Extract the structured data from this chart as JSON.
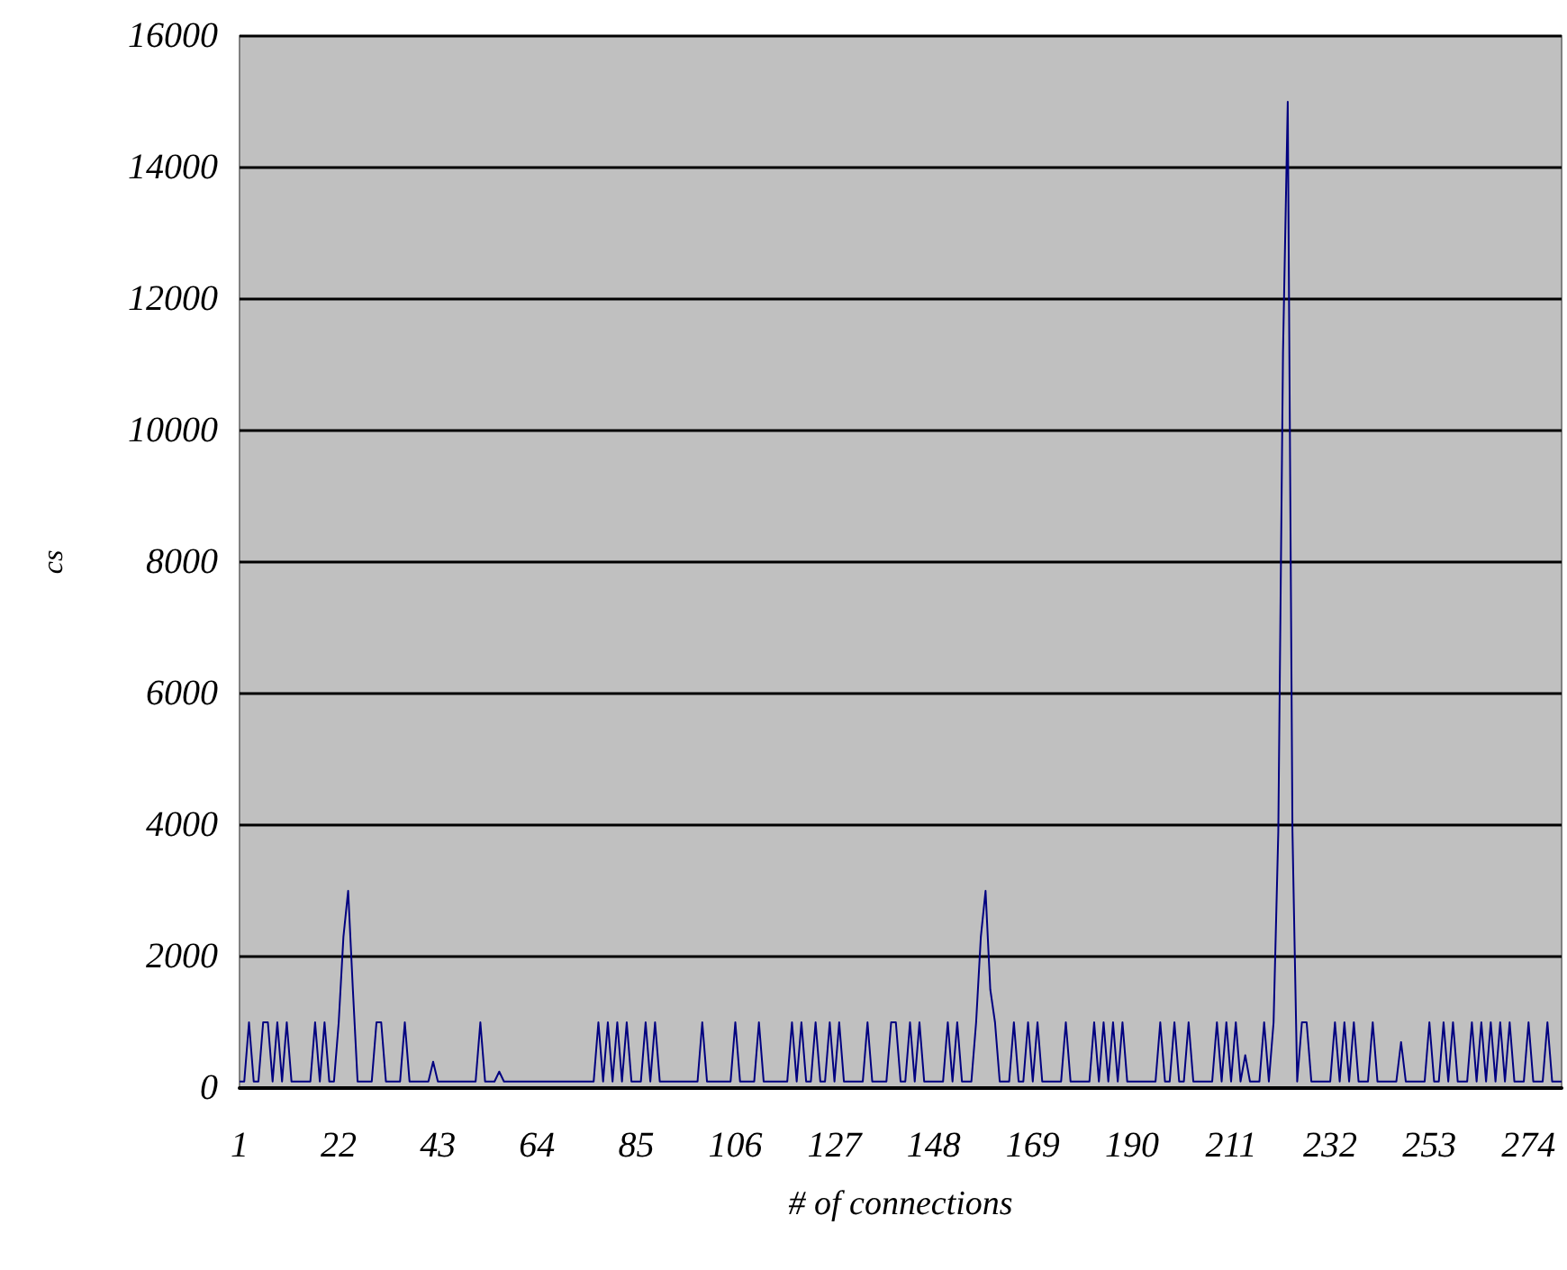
{
  "chart_data": {
    "type": "line",
    "xlabel": "# of connections",
    "ylabel": "cs",
    "categories": [
      "1",
      null,
      null,
      null,
      null,
      null,
      null,
      null,
      null,
      null,
      null,
      null,
      null,
      null,
      null,
      null,
      null,
      null,
      null,
      null,
      null,
      "22",
      null,
      null,
      null,
      null,
      null,
      null,
      null,
      null,
      null,
      null,
      null,
      null,
      null,
      null,
      null,
      null,
      null,
      null,
      null,
      null,
      "43",
      null,
      null,
      null,
      null,
      null,
      null,
      null,
      null,
      null,
      null,
      null,
      null,
      null,
      null,
      null,
      null,
      null,
      null,
      null,
      null,
      "64",
      null,
      null,
      null,
      null,
      null,
      null,
      null,
      null,
      null,
      null,
      null,
      null,
      null,
      null,
      null,
      null,
      null,
      null,
      null,
      null,
      "85",
      null,
      null,
      null,
      null,
      null,
      null,
      null,
      null,
      null,
      null,
      null,
      null,
      null,
      null,
      null,
      null,
      null,
      null,
      null,
      null,
      "106",
      null,
      null,
      null,
      null,
      null,
      null,
      null,
      null,
      null,
      null,
      null,
      null,
      null,
      null,
      null,
      null,
      null,
      null,
      null,
      null,
      "127",
      null,
      null,
      null,
      null,
      null,
      null,
      null,
      null,
      null,
      null,
      null,
      null,
      null,
      null,
      null,
      null,
      null,
      null,
      null,
      null,
      "148",
      null,
      null,
      null,
      null,
      null,
      null,
      null,
      null,
      null,
      null,
      null,
      null,
      null,
      null,
      null,
      null,
      null,
      null,
      null,
      null,
      "169",
      null,
      null,
      null,
      null,
      null,
      null,
      null,
      null,
      null,
      null,
      null,
      null,
      null,
      null,
      null,
      null,
      null,
      null,
      null,
      null,
      "190",
      null,
      null,
      null,
      null,
      null,
      null,
      null,
      null,
      null,
      null,
      null,
      null,
      null,
      null,
      null,
      null,
      null,
      null,
      null,
      null,
      "211",
      null,
      null,
      null,
      null,
      null,
      null,
      null,
      null,
      null,
      null,
      null,
      null,
      null,
      null,
      null,
      null,
      null,
      null,
      null,
      null,
      "232",
      null,
      null,
      null,
      null,
      null,
      null,
      null,
      null,
      null,
      null,
      null,
      null,
      null,
      null,
      null,
      null,
      null,
      null,
      null,
      null,
      "253",
      null,
      null,
      null,
      null,
      null,
      null,
      null,
      null,
      null,
      null,
      null,
      null,
      null,
      null,
      null,
      null,
      null,
      null,
      null,
      null,
      "274",
      null,
      null,
      null,
      null,
      null,
      null,
      null
    ],
    "series": [
      {
        "color": "#000080",
        "values": [
          100,
          100,
          1000,
          100,
          100,
          1000,
          1000,
          100,
          1000,
          100,
          1000,
          100,
          100,
          100,
          100,
          100,
          1000,
          100,
          1000,
          100,
          100,
          1000,
          2300,
          3000,
          1500,
          100,
          100,
          100,
          100,
          1000,
          1000,
          100,
          100,
          100,
          100,
          1000,
          100,
          100,
          100,
          100,
          100,
          400,
          100,
          100,
          100,
          100,
          100,
          100,
          100,
          100,
          100,
          1000,
          100,
          100,
          100,
          250,
          100,
          100,
          100,
          100,
          100,
          100,
          100,
          100,
          100,
          100,
          100,
          100,
          100,
          100,
          100,
          100,
          100,
          100,
          100,
          100,
          1000,
          100,
          1000,
          100,
          1000,
          100,
          1000,
          100,
          100,
          100,
          1000,
          100,
          1000,
          100,
          100,
          100,
          100,
          100,
          100,
          100,
          100,
          100,
          1000,
          100,
          100,
          100,
          100,
          100,
          100,
          1000,
          100,
          100,
          100,
          100,
          1000,
          100,
          100,
          100,
          100,
          100,
          100,
          1000,
          100,
          1000,
          100,
          100,
          1000,
          100,
          100,
          1000,
          100,
          1000,
          100,
          100,
          100,
          100,
          100,
          1000,
          100,
          100,
          100,
          100,
          1000,
          1000,
          100,
          100,
          1000,
          100,
          1000,
          100,
          100,
          100,
          100,
          100,
          1000,
          100,
          1000,
          100,
          100,
          100,
          1000,
          2300,
          3000,
          1500,
          1000,
          100,
          100,
          100,
          1000,
          100,
          100,
          1000,
          100,
          1000,
          100,
          100,
          100,
          100,
          100,
          1000,
          100,
          100,
          100,
          100,
          100,
          1000,
          100,
          1000,
          100,
          1000,
          100,
          1000,
          100,
          100,
          100,
          100,
          100,
          100,
          100,
          1000,
          100,
          100,
          1000,
          100,
          100,
          1000,
          100,
          100,
          100,
          100,
          100,
          1000,
          100,
          1000,
          100,
          1000,
          100,
          500,
          100,
          100,
          100,
          1000,
          100,
          1000,
          3900,
          11200,
          15000,
          3900,
          100,
          1000,
          1000,
          100,
          100,
          100,
          100,
          100,
          1000,
          100,
          1000,
          100,
          1000,
          100,
          100,
          100,
          1000,
          100,
          100,
          100,
          100,
          100,
          700,
          100,
          100,
          100,
          100,
          100,
          1000,
          100,
          100,
          1000,
          100,
          1000,
          100,
          100,
          100,
          1000,
          100,
          1000,
          100,
          1000,
          100,
          1000,
          100,
          1000,
          100,
          100,
          100,
          1000,
          100,
          100,
          100,
          1000,
          100,
          100,
          100
        ]
      }
    ],
    "ylim": [
      0,
      16000
    ],
    "yticks": [
      0,
      2000,
      4000,
      6000,
      8000,
      10000,
      12000,
      14000,
      16000
    ],
    "grid": "y",
    "marker": "none",
    "line_style": "solid"
  }
}
